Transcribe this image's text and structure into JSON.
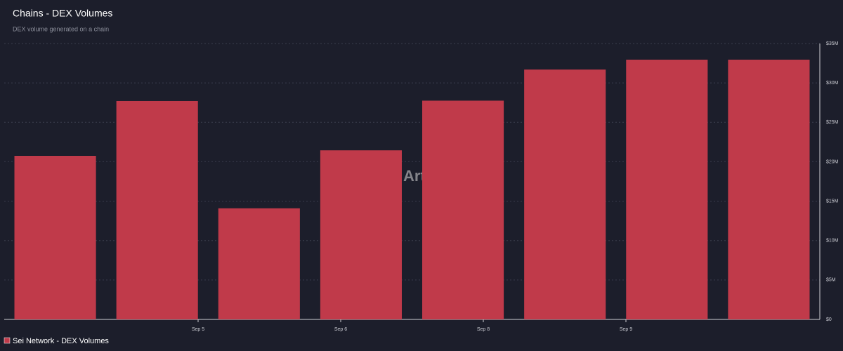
{
  "chart_data": {
    "type": "bar",
    "title": "Chains - DEX Volumes",
    "subtitle": "DEX volume generated on a chain",
    "watermark": "Artemis",
    "x_labels": [
      "Sep 5",
      "Sep 6",
      "Sep 8",
      "Sep 9"
    ],
    "series": [
      {
        "name": "Sei Network - DEX Volumes",
        "color": "#c03a4a",
        "values": [
          20750000,
          27700000,
          14100000,
          21450000,
          27750000,
          31700000,
          32950000,
          32950000
        ]
      }
    ],
    "ylim": [
      0,
      35000000
    ],
    "yticks": [
      {
        "value": 0,
        "label": "$0"
      },
      {
        "value": 5000000,
        "label": "$5M"
      },
      {
        "value": 10000000,
        "label": "$10M"
      },
      {
        "value": 15000000,
        "label": "$15M"
      },
      {
        "value": 20000000,
        "label": "$20M"
      },
      {
        "value": 25000000,
        "label": "$25M"
      },
      {
        "value": 30000000,
        "label": "$30M"
      },
      {
        "value": 35000000,
        "label": "$35M"
      }
    ],
    "grid": true
  }
}
